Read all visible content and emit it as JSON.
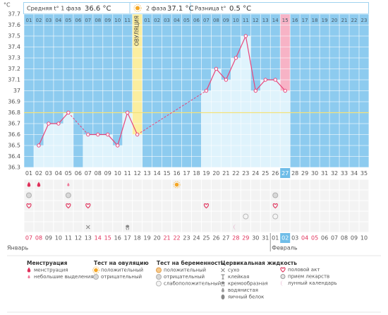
{
  "header": {
    "phase1_label": "Средняя t° 1 фаза",
    "phase1_value": "36.6 °C",
    "phase2_label": "2 фаза",
    "phase2_value": "37.1 °C",
    "diff_label": "Разница t°",
    "diff_value": "0.5 °C"
  },
  "chart_data": {
    "type": "line",
    "y_unit": "°C",
    "categories": [
      "01",
      "02",
      "03",
      "04",
      "05",
      "06",
      "07",
      "08",
      "09",
      "10",
      "11",
      "12",
      "13",
      "14",
      "15",
      "16",
      "17",
      "18",
      "19",
      "20",
      "21",
      "22",
      "23",
      "24",
      "25",
      "26",
      "27",
      "28",
      "29",
      "30",
      "31",
      "32",
      "33",
      "34",
      "35"
    ],
    "phase_days": [
      "01",
      "02",
      "03",
      "04",
      "05",
      "06",
      "07",
      "08",
      "09",
      "10",
      "11",
      null,
      "01",
      "02",
      "03",
      "04",
      "05",
      "06",
      "07",
      "08",
      "09",
      "10",
      "11",
      "12",
      "13",
      "14",
      "15",
      "16",
      "17",
      "18",
      "19",
      "20",
      "21",
      "22",
      "23"
    ],
    "values": [
      null,
      36.5,
      36.7,
      36.7,
      36.8,
      null,
      36.6,
      36.6,
      36.6,
      36.5,
      36.8,
      36.6,
      null,
      null,
      null,
      null,
      null,
      null,
      37.0,
      37.2,
      37.1,
      37.3,
      37.5,
      37.0,
      37.1,
      37.1,
      37.0,
      null,
      null,
      null,
      null,
      null,
      null,
      null,
      null
    ],
    "color": "#e8457a",
    "ovulation_label": "ОВУЛЯЦИЯ",
    "ovulation_day": "12",
    "highlight_day": "27",
    "coverline": 36.8,
    "ylim": [
      36.3,
      37.7
    ],
    "yticks": [
      36.3,
      36.4,
      36.5,
      36.6,
      36.7,
      36.8,
      36.9,
      37,
      37.1,
      37.2,
      37.3,
      37.4,
      37.5,
      37.6,
      37.7
    ],
    "grid": true
  },
  "calendar": {
    "dates": [
      "07",
      "08",
      "09",
      "10",
      "11",
      "12",
      "13",
      "14",
      "15",
      "16",
      "17",
      "18",
      "19",
      "20",
      "21",
      "22",
      "23",
      "24",
      "25",
      "26",
      "27",
      "28",
      "29",
      "30",
      "31",
      "01",
      "02",
      "03",
      "04",
      "05",
      "06",
      "07",
      "08",
      "09",
      "10"
    ],
    "weekend": [
      true,
      true,
      false,
      false,
      false,
      false,
      false,
      true,
      true,
      false,
      false,
      false,
      false,
      false,
      true,
      true,
      false,
      false,
      false,
      false,
      false,
      true,
      true,
      false,
      false,
      false,
      false,
      false,
      true,
      true,
      false,
      false,
      false,
      false,
      false
    ],
    "months": [
      {
        "name": "Январь",
        "from": "01"
      },
      {
        "name": "Февраль",
        "from": "26"
      }
    ]
  },
  "day_marks": [
    {
      "icon": "drop",
      "days": [
        "01",
        "02"
      ]
    },
    {
      "icon": "spot",
      "days": [
        "05"
      ]
    },
    {
      "icon": "sun",
      "days": [
        "16"
      ]
    },
    {
      "icon": "circle-gray",
      "days": [
        "01",
        "05",
        "26"
      ]
    },
    {
      "icon": "heart",
      "days": [
        "01",
        "05",
        "07",
        "19",
        "26"
      ]
    },
    {
      "icon": "circle-light",
      "days": [
        "23",
        "26"
      ]
    },
    {
      "icon": "cross",
      "days": [
        "07"
      ]
    },
    {
      "icon": "creamy",
      "days": [
        "11"
      ]
    },
    {
      "icon": "moon",
      "days": [
        "22"
      ]
    }
  ],
  "legend": [
    {
      "title": "Менструация",
      "items": [
        {
          "label": "менструация",
          "icon": "drop"
        },
        {
          "label": "небольшие выделения",
          "icon": "spot"
        }
      ]
    },
    {
      "title": "Тест на овуляцию",
      "items": [
        {
          "label": "положительный",
          "icon": "sun"
        },
        {
          "label": "отрицательный",
          "icon": "circle-gray"
        }
      ]
    },
    {
      "title": "Тест на беременность",
      "items": [
        {
          "label": "положительный",
          "icon": "circle-orange"
        },
        {
          "label": "отрицательный",
          "icon": "circle-gray"
        },
        {
          "label": "слабоположительный",
          "icon": "circle-light"
        }
      ]
    },
    {
      "title": "Цервикальная жидкость",
      "items": [
        {
          "label": "сухо",
          "icon": "cross"
        },
        {
          "label": "клейкая",
          "icon": "sticky"
        },
        {
          "label": "кремообразная",
          "icon": "creamy"
        },
        {
          "label": "водянистая",
          "icon": "watery"
        },
        {
          "label": "яичный белок",
          "icon": "egg"
        }
      ]
    },
    {
      "items": [
        {
          "label": "половой акт",
          "icon": "heart"
        },
        {
          "label": "прием лекарств",
          "icon": "pill"
        },
        {
          "label": "лунный календарь",
          "icon": "moon"
        }
      ]
    }
  ]
}
